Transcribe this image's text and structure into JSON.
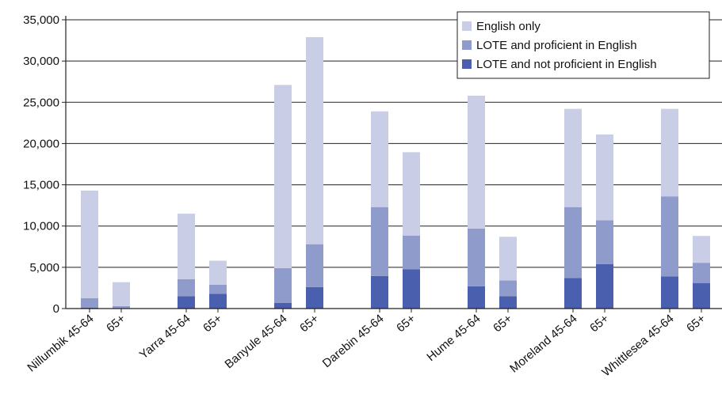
{
  "chart_data": {
    "type": "bar",
    "stacked": true,
    "categories": [
      "Nillumbik 45-64",
      "65+",
      "Yarra 45-64",
      "65+",
      "Banyule 45-64",
      "65+",
      "Darebin 45-64",
      "65+",
      "Hume 45-64",
      "65+",
      "Moreland 45-64",
      "65+",
      "Whittlesea 45-64",
      "65+"
    ],
    "series": [
      {
        "name": "LOTE and not proficient in English",
        "color": "#4a5fae",
        "values": [
          100,
          50,
          1500,
          1800,
          700,
          2600,
          3950,
          4750,
          2700,
          1500,
          3700,
          5400,
          3900,
          3100
        ]
      },
      {
        "name": "LOTE and proficient in English",
        "color": "#8f9ccb",
        "values": [
          1150,
          250,
          2050,
          1100,
          4200,
          5200,
          8350,
          4100,
          7000,
          1900,
          8600,
          5300,
          9700,
          2450
        ]
      },
      {
        "name": "English only",
        "color": "#c9cde6",
        "values": [
          13050,
          2900,
          7950,
          2900,
          22200,
          25100,
          11600,
          10100,
          16100,
          5300,
          11900,
          10400,
          10600,
          3250
        ]
      }
    ],
    "ylim": [
      0,
      35000
    ],
    "yticks": [
      "0",
      "5,000",
      "10,000",
      "15,000",
      "20,000",
      "25,000",
      "30,000",
      "35,000"
    ],
    "grid": true,
    "legend_position": "top-right",
    "legend_order": [
      "English only",
      "LOTE and proficient in English",
      "LOTE and not proficient in English"
    ]
  }
}
